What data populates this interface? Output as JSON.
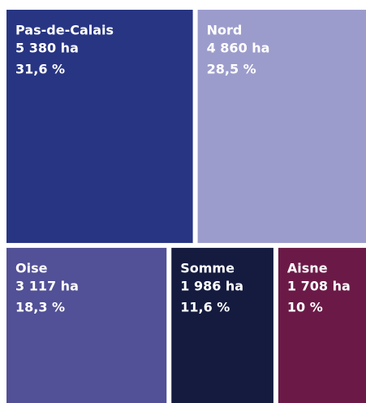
{
  "chart_data": {
    "type": "treemap",
    "categories": [
      "Pas-de-Calais",
      "Nord",
      "Oise",
      "Somme",
      "Aisne"
    ],
    "values": [
      5380,
      4860,
      3117,
      1986,
      1708
    ],
    "value_labels": [
      "5 380 ha",
      "4 860 ha",
      "3 117 ha",
      "1 986 ha",
      "1 708 ha"
    ],
    "shares": [
      31.6,
      28.5,
      18.3,
      11.6,
      10
    ],
    "share_labels": [
      "31,6 %",
      "28,5 %",
      "18,3 %",
      "11,6 %",
      "10 %"
    ],
    "colors": [
      "#283583",
      "#9c9ccc",
      "#525096",
      "#141b3f",
      "#6b1a47"
    ]
  }
}
